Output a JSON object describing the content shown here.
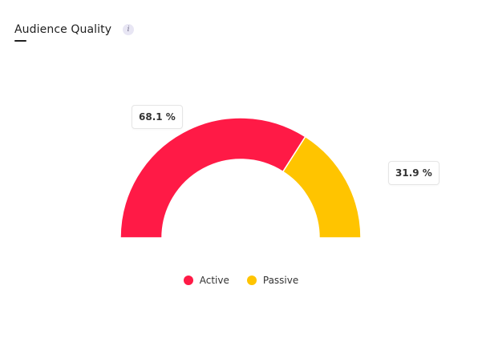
{
  "header": {
    "title": "Audience Quality",
    "info_icon": "info-icon",
    "info_glyph": "i"
  },
  "chart_data": {
    "type": "pie",
    "variant": "semi-donut",
    "title": "",
    "series": [
      {
        "name": "Active",
        "value": 68.1,
        "label": "68.1 %",
        "color": "#ff1a46"
      },
      {
        "name": "Passive",
        "value": 31.9,
        "label": "31.9 %",
        "color": "#ffc400"
      }
    ],
    "legend_position": "bottom-center"
  }
}
